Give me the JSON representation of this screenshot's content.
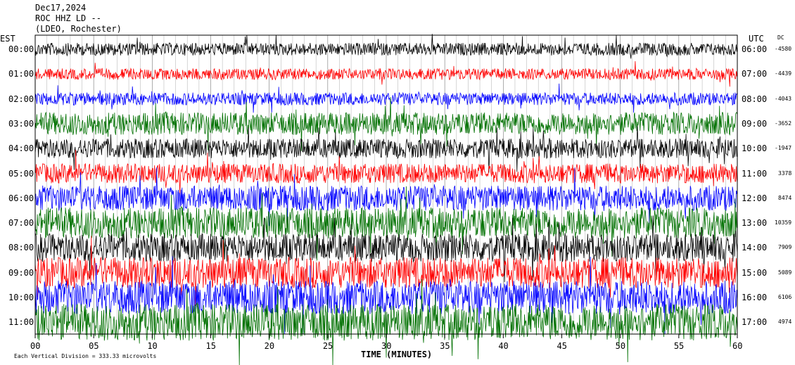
{
  "header": {
    "date": "Dec17,2024",
    "station": "ROC HHZ LD --",
    "network": "(LDEO, Rochester)"
  },
  "left_axis_label": "EST",
  "right_axis_label": "UTC",
  "dc_label": "DC",
  "x_axis_title": "TIME (MINUTES)",
  "scale_note": "Each Vertical Division = 333.33 microvolts",
  "chart_data": {
    "type": "line",
    "xlabel": "TIME (MINUTES)",
    "xlim": [
      0,
      60
    ],
    "x_ticks": [
      "00",
      "05",
      "10",
      "15",
      "20",
      "25",
      "30",
      "35",
      "40",
      "45",
      "50",
      "55",
      "60"
    ],
    "left_ticks": [
      "00:00",
      "01:00",
      "02:00",
      "03:00",
      "04:00",
      "05:00",
      "06:00",
      "07:00",
      "08:00",
      "09:00",
      "10:00",
      "11:00"
    ],
    "right_ticks": [
      "06:00",
      "07:00",
      "08:00",
      "09:00",
      "10:00",
      "11:00",
      "12:00",
      "13:00",
      "14:00",
      "15:00",
      "16:00",
      "17:00"
    ],
    "dc_offsets": [
      "-4580",
      "-4439",
      "-4043",
      "-3652",
      "-1947",
      "3378",
      "8474",
      "10359",
      "7909",
      "5089",
      "6106",
      "4974"
    ],
    "trace_colors": [
      "#000000",
      "#ff0000",
      "#0000ff",
      "#007000"
    ],
    "grid": true
  }
}
